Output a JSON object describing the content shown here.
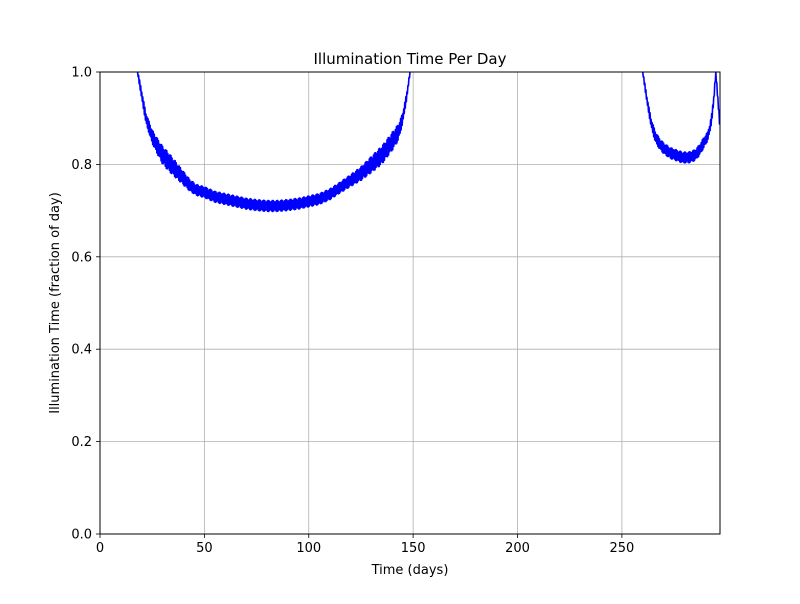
{
  "chart_data": {
    "type": "line",
    "title": "Illumination Time Per Day",
    "xlabel": "Time (days)",
    "ylabel": "Illumination Time (fraction of day)",
    "xlim": [
      0,
      297
    ],
    "ylim": [
      0,
      1
    ],
    "xticks": [
      0,
      50,
      100,
      150,
      200,
      250
    ],
    "yticks": [
      0.0,
      0.2,
      0.4,
      0.6,
      0.8,
      1.0
    ],
    "xtick_labels": [
      "0",
      "50",
      "100",
      "150",
      "200",
      "250"
    ],
    "ytick_labels": [
      "0.0",
      "0.2",
      "0.4",
      "0.6",
      "0.8",
      "1.0"
    ],
    "grid": true,
    "series": [
      {
        "color": "#0000ff",
        "segments": [
          {
            "x": [
              18,
              20,
              22,
              25,
              28,
              30,
              33,
              36,
              40,
              43,
              46,
              50,
              55,
              60,
              65,
              70,
              75,
              80,
              85,
              90,
              95,
              100,
              105,
              110,
              115,
              120,
              125,
              130,
              135,
              140,
              143,
              145,
              147,
              148.5
            ],
            "y": [
              1.0,
              0.95,
              0.9,
              0.86,
              0.835,
              0.82,
              0.805,
              0.79,
              0.77,
              0.755,
              0.745,
              0.74,
              0.73,
              0.725,
              0.72,
              0.715,
              0.712,
              0.71,
              0.71,
              0.712,
              0.715,
              0.72,
              0.725,
              0.735,
              0.75,
              0.765,
              0.78,
              0.8,
              0.82,
              0.85,
              0.87,
              0.9,
              0.95,
              1.0
            ],
            "jitter": [
              0.005,
              0.01,
              0.012,
              0.015,
              0.018,
              0.02,
              0.02,
              0.018,
              0.015,
              0.013,
              0.012,
              0.012,
              0.012,
              0.012,
              0.012,
              0.012,
              0.012,
              0.012,
              0.012,
              0.012,
              0.012,
              0.012,
              0.012,
              0.012,
              0.012,
              0.013,
              0.015,
              0.018,
              0.02,
              0.02,
              0.018,
              0.012,
              0.008,
              0.004
            ]
          },
          {
            "x": [
              260,
              262,
              264,
              266,
              268,
              270,
              273,
              276,
              279,
              282,
              285,
              287,
              289,
              291,
              292,
              293,
              294,
              295,
              296,
              297
            ],
            "y": [
              1.0,
              0.94,
              0.89,
              0.86,
              0.845,
              0.835,
              0.825,
              0.82,
              0.815,
              0.815,
              0.82,
              0.83,
              0.845,
              0.86,
              0.875,
              0.9,
              0.94,
              1.0,
              0.94,
              0.88
            ],
            "jitter": [
              0.004,
              0.008,
              0.01,
              0.012,
              0.012,
              0.012,
              0.012,
              0.012,
              0.012,
              0.012,
              0.012,
              0.012,
              0.012,
              0.01,
              0.01,
              0.01,
              0.01,
              0.005,
              0.008,
              0.008
            ]
          }
        ]
      }
    ]
  }
}
